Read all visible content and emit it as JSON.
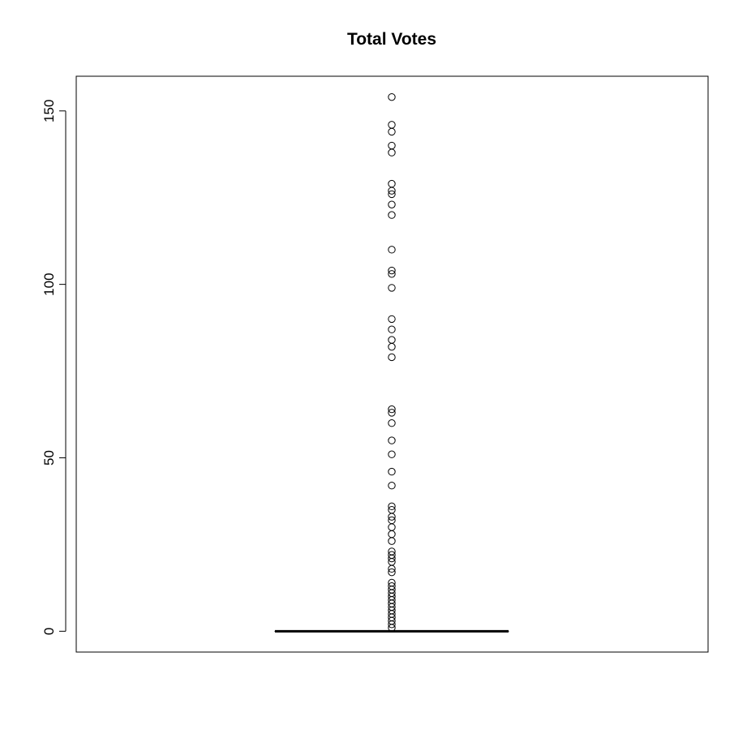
{
  "chart_data": {
    "type": "box",
    "title": "Total Votes",
    "xlabel": "",
    "ylabel": "",
    "ylim": [
      -6,
      160
    ],
    "yticks": [
      0,
      50,
      100,
      150
    ],
    "grid": false,
    "legend": "none",
    "box": {
      "min": 0,
      "q1": 0,
      "median": 0,
      "q3": 0,
      "max": 0
    },
    "outliers": [
      154,
      146,
      144,
      140,
      138,
      129,
      127,
      126,
      123,
      120,
      110,
      104,
      103,
      99,
      90,
      87,
      84,
      82,
      79,
      64,
      63,
      60,
      55,
      51,
      46,
      42,
      36,
      35,
      33,
      32,
      30,
      28,
      26,
      23,
      22,
      21,
      20,
      18,
      17,
      14,
      13,
      12,
      11,
      10,
      9,
      8,
      7,
      6,
      5,
      4,
      3,
      2,
      1
    ]
  },
  "colors": {
    "axis": "#000000",
    "points": "#000000",
    "background": "#ffffff"
  }
}
